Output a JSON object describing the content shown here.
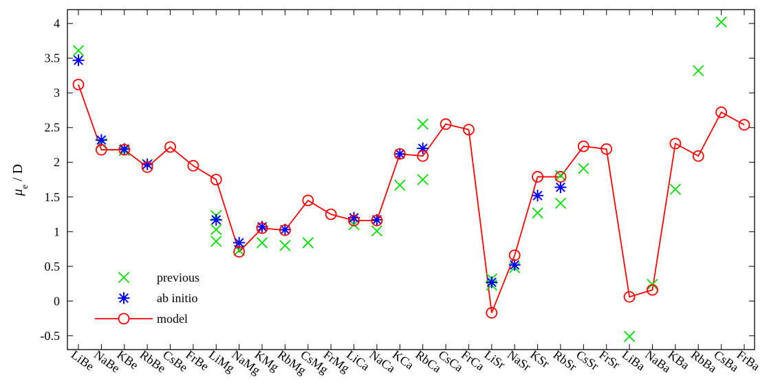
{
  "chart_data": {
    "type": "scatter",
    "categories": [
      "LiBe",
      "NaBe",
      "KBe",
      "RbBe",
      "CsBe",
      "FrBe",
      "LiMg",
      "NaMg",
      "KMg",
      "RbMg",
      "CsMg",
      "FrMg",
      "LiCa",
      "NaCa",
      "KCa",
      "RbCa",
      "CsCa",
      "FrCa",
      "LiSr",
      "NaSr",
      "KSr",
      "RbSr",
      "CsSr",
      "FrSr",
      "LiBa",
      "NaBa",
      "KBa",
      "RbBa",
      "CsBa",
      "FrBa"
    ],
    "ylabel_symbol": "μ",
    "ylabel_subscript": "e",
    "ylabel_unit": " / D",
    "xlabel": "",
    "ylim": [
      -0.7,
      4.2
    ],
    "yticks": [
      -0.5,
      0,
      0.5,
      1,
      1.5,
      2,
      2.5,
      3,
      3.5,
      4
    ],
    "ytick_labels": [
      "-0.5",
      "0",
      "0.5",
      "1",
      "1.5",
      "2",
      "2.5",
      "3",
      "3.5",
      "4"
    ],
    "grid": false,
    "legend_position": "bottom-left",
    "series": [
      {
        "name": "previous",
        "marker": "x",
        "color": "#00e000",
        "points": [
          {
            "x": "LiBe",
            "y": 3.61
          },
          {
            "x": "NaBe",
            "y": 2.27
          },
          {
            "x": "KBe",
            "y": 2.17
          },
          {
            "x": "RbBe",
            "y": 1.97
          },
          {
            "x": "LiMg",
            "y": 1.23
          },
          {
            "x": "LiMg",
            "y": 1.03
          },
          {
            "x": "LiMg",
            "y": 0.86
          },
          {
            "x": "NaMg",
            "y": 0.73
          },
          {
            "x": "KMg",
            "y": 0.84
          },
          {
            "x": "RbMg",
            "y": 0.8
          },
          {
            "x": "CsMg",
            "y": 0.84
          },
          {
            "x": "LiCa",
            "y": 1.1
          },
          {
            "x": "NaCa",
            "y": 1.01
          },
          {
            "x": "KCa",
            "y": 1.67
          },
          {
            "x": "RbCa",
            "y": 2.55
          },
          {
            "x": "RbCa",
            "y": 1.75
          },
          {
            "x": "LiSr",
            "y": 0.32
          },
          {
            "x": "LiSr",
            "y": 0.23
          },
          {
            "x": "NaSr",
            "y": 0.48
          },
          {
            "x": "KSr",
            "y": 1.27
          },
          {
            "x": "RbSr",
            "y": 1.81
          },
          {
            "x": "RbSr",
            "y": 1.41
          },
          {
            "x": "CsSr",
            "y": 1.91
          },
          {
            "x": "LiBa",
            "y": -0.51
          },
          {
            "x": "NaBa",
            "y": 0.24
          },
          {
            "x": "KBa",
            "y": 1.61
          },
          {
            "x": "RbBa",
            "y": 3.32
          },
          {
            "x": "CsBa",
            "y": 4.02
          }
        ]
      },
      {
        "name": "ab initio",
        "marker": "asterisk",
        "color": "#0000ff",
        "points": [
          {
            "x": "LiBe",
            "y": 3.47
          },
          {
            "x": "NaBe",
            "y": 2.32
          },
          {
            "x": "KBe",
            "y": 2.19
          },
          {
            "x": "RbBe",
            "y": 1.97
          },
          {
            "x": "LiMg",
            "y": 1.17
          },
          {
            "x": "NaMg",
            "y": 0.84
          },
          {
            "x": "KMg",
            "y": 1.07
          },
          {
            "x": "RbMg",
            "y": 1.03
          },
          {
            "x": "LiCa",
            "y": 1.2
          },
          {
            "x": "NaCa",
            "y": 1.17
          },
          {
            "x": "KCa",
            "y": 2.12
          },
          {
            "x": "RbCa",
            "y": 2.2
          },
          {
            "x": "LiSr",
            "y": 0.27
          },
          {
            "x": "NaSr",
            "y": 0.52
          },
          {
            "x": "KSr",
            "y": 1.52
          },
          {
            "x": "RbSr",
            "y": 1.64
          }
        ]
      },
      {
        "name": "model",
        "marker": "circle-line",
        "color": "#ff0000",
        "points": [
          {
            "x": "LiBe",
            "y": 3.12
          },
          {
            "x": "NaBe",
            "y": 2.18
          },
          {
            "x": "KBe",
            "y": 2.18
          },
          {
            "x": "RbBe",
            "y": 1.93
          },
          {
            "x": "CsBe",
            "y": 2.22
          },
          {
            "x": "FrBe",
            "y": 1.95
          },
          {
            "x": "LiMg",
            "y": 1.75
          },
          {
            "x": "NaMg",
            "y": 0.71
          },
          {
            "x": "KMg",
            "y": 1.05
          },
          {
            "x": "RbMg",
            "y": 1.02
          },
          {
            "x": "CsMg",
            "y": 1.45
          },
          {
            "x": "FrMg",
            "y": 1.25
          },
          {
            "x": "LiCa",
            "y": 1.16
          },
          {
            "x": "NaCa",
            "y": 1.16
          },
          {
            "x": "KCa",
            "y": 2.12
          },
          {
            "x": "RbCa",
            "y": 2.09
          },
          {
            "x": "CsCa",
            "y": 2.55
          },
          {
            "x": "FrCa",
            "y": 2.47
          },
          {
            "x": "LiSr",
            "y": -0.17
          },
          {
            "x": "NaSr",
            "y": 0.66
          },
          {
            "x": "KSr",
            "y": 1.79
          },
          {
            "x": "RbSr",
            "y": 1.79
          },
          {
            "x": "CsSr",
            "y": 2.23
          },
          {
            "x": "FrSr",
            "y": 2.19
          },
          {
            "x": "LiBa",
            "y": 0.06
          },
          {
            "x": "NaBa",
            "y": 0.16
          },
          {
            "x": "KBa",
            "y": 2.27
          },
          {
            "x": "RbBa",
            "y": 2.09
          },
          {
            "x": "CsBa",
            "y": 2.72
          },
          {
            "x": "FrBa",
            "y": 2.54
          }
        ]
      }
    ]
  }
}
